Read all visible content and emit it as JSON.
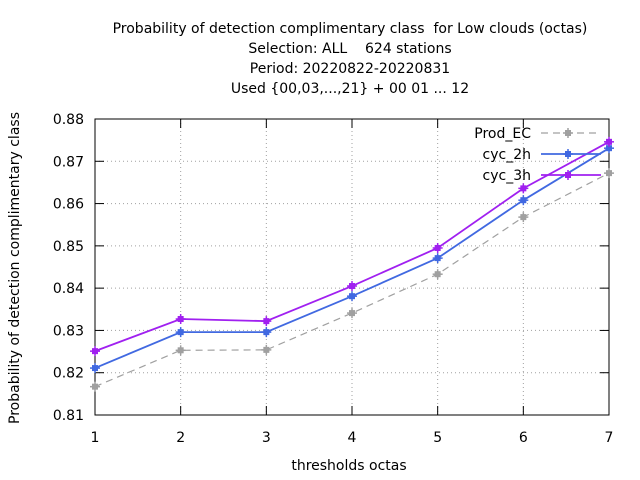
{
  "chart_data": {
    "type": "line",
    "title_lines": [
      "Probability of detection complimentary class  for Low clouds (octas)",
      "Selection: ALL    624 stations",
      "Period: 20220822-20220831",
      "Used {00,03,...,21} + 00 01 ... 12"
    ],
    "xlabel": "thresholds octas",
    "ylabel": "Probability of detection complimentary class",
    "x": [
      1,
      2,
      3,
      4,
      5,
      6,
      7
    ],
    "xlim": [
      1,
      7
    ],
    "ylim": [
      0.81,
      0.88
    ],
    "xticks": [
      "1",
      "2",
      "3",
      "4",
      "5",
      "6",
      "7"
    ],
    "yticks": [
      "0.81",
      "0.82",
      "0.83",
      "0.84",
      "0.85",
      "0.86",
      "0.87",
      "0.88"
    ],
    "grid": true,
    "legend_position": "top-right",
    "series": [
      {
        "name": "Prod_EC",
        "color": "#a0a0a0",
        "dashed": true,
        "values": [
          0.8167,
          0.8253,
          0.8254,
          0.8341,
          0.8433,
          0.8568,
          0.8672
        ]
      },
      {
        "name": "cyc_2h",
        "color": "#4169e1",
        "dashed": false,
        "values": [
          0.8211,
          0.8296,
          0.8296,
          0.8381,
          0.8471,
          0.8608,
          0.8731
        ]
      },
      {
        "name": "cyc_3h",
        "color": "#a020f0",
        "dashed": false,
        "values": [
          0.8251,
          0.8327,
          0.8322,
          0.8405,
          0.8495,
          0.8636,
          0.8746
        ]
      }
    ]
  }
}
